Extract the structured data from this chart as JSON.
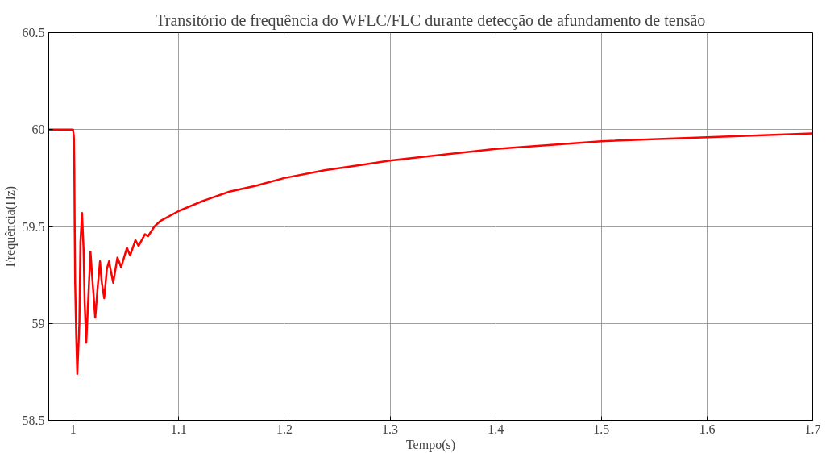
{
  "chart_data": {
    "type": "line",
    "title": "Transitório de frequência do WFLC/FLC durante detecção de afundamento de tensão",
    "xlabel": "Tempo(s)",
    "ylabel": "Frequência(Hz)",
    "xlim": [
      0.977,
      1.7
    ],
    "ylim": [
      58.5,
      60.5
    ],
    "xticks": [
      1,
      1.1,
      1.2,
      1.3,
      1.4,
      1.5,
      1.6,
      1.7
    ],
    "yticks": [
      58.5,
      59,
      59.5,
      60,
      60.5
    ],
    "grid": true,
    "marker": "none",
    "line_style": "solid",
    "series": [
      {
        "color": "#ff0000",
        "x": [
          0.977,
          1.0,
          1.0008,
          1.0012,
          1.0015,
          1.002,
          1.003,
          1.004,
          1.006,
          1.007,
          1.0085,
          1.01,
          1.011,
          1.0125,
          1.0145,
          1.0165,
          1.018,
          1.021,
          1.0235,
          1.0255,
          1.027,
          1.0295,
          1.032,
          1.034,
          1.038,
          1.042,
          1.0455,
          1.051,
          1.054,
          1.059,
          1.062,
          1.068,
          1.071,
          1.077,
          1.083,
          1.1,
          1.122,
          1.148,
          1.173,
          1.2,
          1.238,
          1.276,
          1.3,
          1.4,
          1.5,
          1.6,
          1.7
        ],
        "values": [
          60,
          60,
          59.96,
          59.8,
          59.54,
          59.21,
          58.94,
          58.74,
          59.0,
          59.42,
          59.57,
          59.38,
          59.11,
          58.9,
          59.14,
          59.37,
          59.25,
          59.03,
          59.2,
          59.32,
          59.22,
          59.13,
          59.28,
          59.32,
          59.21,
          59.34,
          59.29,
          59.39,
          59.35,
          59.43,
          59.4,
          59.46,
          59.45,
          59.5,
          59.53,
          59.58,
          59.63,
          59.68,
          59.71,
          59.75,
          59.79,
          59.82,
          59.84,
          59.9,
          59.94,
          59.96,
          59.98
        ]
      }
    ]
  }
}
